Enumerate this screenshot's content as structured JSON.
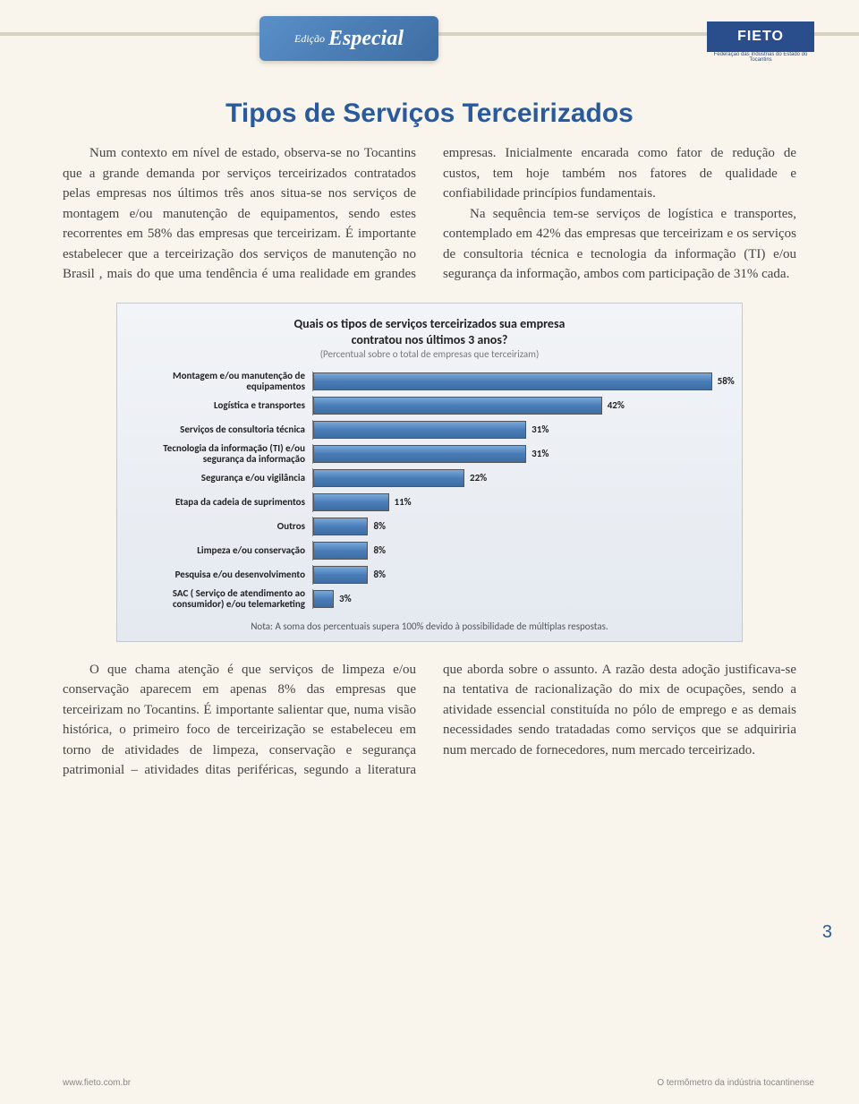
{
  "header": {
    "badge_small": "Edição",
    "badge_large": "Especial",
    "logo_text": "FIETO",
    "logo_sub": "Federação das Indústrias do Estado do Tocantins"
  },
  "title": "Tipos de Serviços Terceirizados",
  "para1": "Num contexto em nível de estado, observa-se no Tocantins que a grande demanda por serviços terceirizados contratados pelas empresas nos últimos três anos situa-se nos serviços de montagem e/ou manutenção de equipamentos, sendo estes recorrentes em 58% das empresas que terceirizam. É importante estabelecer que a terceirização dos serviços de manutenção no Brasil , mais do que uma tendência é uma realidade em grandes empresas. Inicialmente encarada como fator de redução de custos, tem hoje também nos fatores de qualidade e confiabilidade princípios fundamentais.",
  "para2": "Na sequência tem-se serviços de logística e transportes, contemplado em 42% das empresas que terceirizam e os serviços de consultoria técnica e tecnologia da informação (TI) e/ou segurança da informação, ambos com participação de 31% cada.",
  "chart": {
    "title_l1": "Quais os tipos de serviços terceirizados sua empresa",
    "title_l2": "contratou nos últimos 3 anos?",
    "subtitle": "(Percentual sobre o total de empresas que terceirizam)",
    "max": 60,
    "rows": [
      {
        "label": "Montagem e/ou manutenção de equipamentos",
        "value": 58,
        "text": "58%"
      },
      {
        "label": "Logística e transportes",
        "value": 42,
        "text": "42%"
      },
      {
        "label": "Serviços de consultoria técnica",
        "value": 31,
        "text": "31%"
      },
      {
        "label": "Tecnologia da informação (TI) e/ou segurança da informação",
        "value": 31,
        "text": "31%"
      },
      {
        "label": "Segurança e/ou vigilância",
        "value": 22,
        "text": "22%"
      },
      {
        "label": "Etapa da cadeia de suprimentos",
        "value": 11,
        "text": "11%"
      },
      {
        "label": "Outros",
        "value": 8,
        "text": "8%"
      },
      {
        "label": "Limpeza e/ou conservação",
        "value": 8,
        "text": "8%"
      },
      {
        "label": "Pesquisa e/ou desenvolvimento",
        "value": 8,
        "text": "8%"
      },
      {
        "label": "SAC ( Serviço de atendimento ao consumidor) e/ou telemarketing",
        "value": 3,
        "text": "3%"
      }
    ],
    "note": "Nota:  A soma dos percentuais supera 100% devido à possibilidade de múltiplas respostas."
  },
  "para3": "O que chama atenção é que serviços de limpeza e/ou conservação aparecem em apenas 8% das empresas que terceirizam no Tocantins. É importante salientar que, numa visão histórica, o primeiro foco de terceirização se estabeleceu em torno de atividades de limpeza, conservação e segurança patrimonial – atividades ditas periféricas, segundo a literatura que aborda sobre o assunto. A razão desta adoção justificava-se na tentativa de racionalização do mix de ocupações, sendo a atividade essencial constituída no pólo de emprego e as demais necessidades sendo tratadadas como serviços que se adquiriria num mercado de fornecedores, num mercado terceirizado.",
  "footer": {
    "left": "www.fieto.com.br",
    "right": "O termômetro da indústria tocantinense",
    "page": "3"
  }
}
